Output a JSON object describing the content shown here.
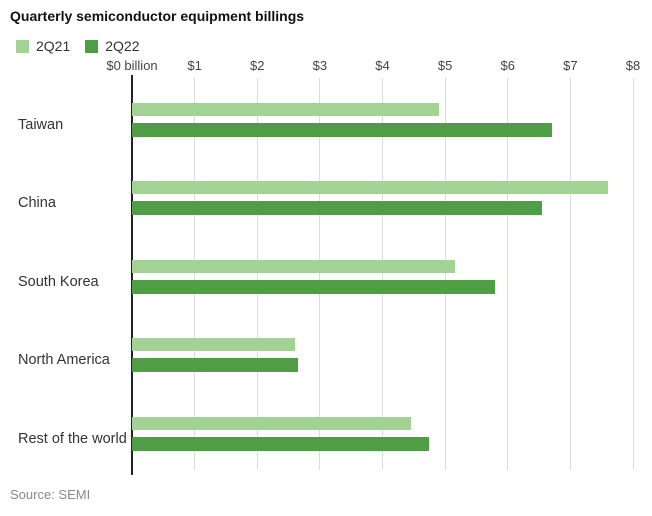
{
  "title": "Quarterly semiconductor equipment billings",
  "source": "Source: SEMI",
  "legend": [
    {
      "label": "2Q21",
      "color": "#a3d394"
    },
    {
      "label": "2Q22",
      "color": "#4f9d45"
    }
  ],
  "colors": {
    "grid": "#dcdcdc",
    "axis": "#222222",
    "series_2q21": "#a3d394",
    "series_2q22": "#4f9d45"
  },
  "chart_data": {
    "type": "bar",
    "orientation": "horizontal",
    "title": "Quarterly semiconductor equipment billings",
    "unit": "USD billions",
    "categories": [
      "Taiwan",
      "China",
      "South Korea",
      "North America",
      "Rest of the world"
    ],
    "series": [
      {
        "name": "2Q21",
        "color": "#a3d394",
        "values": [
          4.9,
          7.6,
          5.15,
          2.6,
          4.45
        ]
      },
      {
        "name": "2Q22",
        "color": "#4f9d45",
        "values": [
          6.7,
          6.55,
          5.8,
          2.65,
          4.75
        ]
      }
    ],
    "xlim": [
      0,
      8
    ],
    "x_tick_labels": [
      "$0 billion",
      "$1",
      "$2",
      "$3",
      "$4",
      "$5",
      "$6",
      "$7",
      "$8"
    ],
    "grid": true,
    "legend_position": "top-left",
    "source": "Source: SEMI"
  }
}
